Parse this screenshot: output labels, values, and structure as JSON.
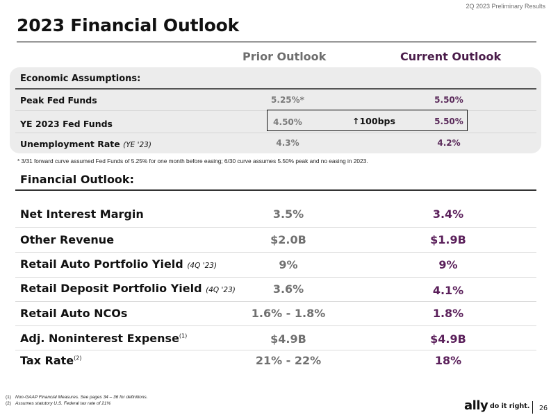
{
  "header": {
    "report_label": "2Q 2023 Preliminary Results"
  },
  "title": "2023 Financial Outlook",
  "columns": {
    "prior": "Prior Outlook",
    "current": "Current Outlook"
  },
  "economic": {
    "title": "Economic Assumptions:",
    "rows": [
      {
        "label": "Peak Fed Funds",
        "sub": "",
        "prior": "5.25%*",
        "current": "5.50%"
      },
      {
        "label": "YE 2023 Fed Funds",
        "sub": "",
        "prior": "4.50%",
        "current": "5.50%"
      },
      {
        "label": "Unemployment Rate",
        "sub": "(YE '23)",
        "prior": "4.3%",
        "current": "4.2%"
      }
    ],
    "change_label": "↑100bps",
    "footnote": "* 3/31 forward curve assumed Fed Funds of 5.25% for one month before easing; 6/30 curve assumes 5.50% peak and no easing in 2023."
  },
  "financial": {
    "title": "Financial Outlook:",
    "rows": [
      {
        "label": "Net Interest Margin",
        "sub": "",
        "sup": "",
        "prior": "3.5%",
        "current": "3.4%"
      },
      {
        "label": "Other Revenue",
        "sub": "",
        "sup": "",
        "prior": "$2.0B",
        "current": "$1.9B"
      },
      {
        "label": "Retail Auto Portfolio Yield",
        "sub": "(4Q '23)",
        "sup": "",
        "prior": "9%",
        "current": "9%"
      },
      {
        "label": "Retail Deposit Portfolio Yield",
        "sub": "(4Q '23)",
        "sup": "",
        "prior": "3.6%",
        "current": "4.1%"
      },
      {
        "label": "Retail Auto NCOs",
        "sub": "",
        "sup": "",
        "prior": "1.6% - 1.8%",
        "current": "1.8%"
      },
      {
        "label": "Adj. Noninterest Expense",
        "sub": "",
        "sup": "(1)",
        "prior": "$4.9B",
        "current": "$4.9B"
      },
      {
        "label": "Tax Rate",
        "sub": "",
        "sup": "(2)",
        "prior": "21% - 22%",
        "current": "18%"
      }
    ]
  },
  "footnotes": [
    {
      "num": "(1)",
      "text": "Non-GAAP Financial Measures. See pages 34 – 36 for definitions."
    },
    {
      "num": "(2)",
      "text": "Assumes statutory U.S. Federal tax rate of 21%"
    }
  ],
  "footer": {
    "logo": "ally",
    "tagline": "do it right.",
    "page_number": "26"
  }
}
